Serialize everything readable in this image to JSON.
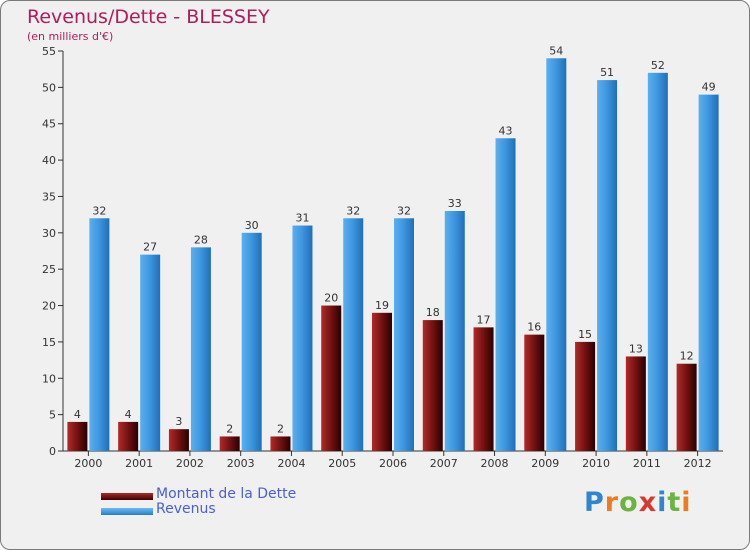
{
  "title": "Revenus/Dette - BLESSEY",
  "subtitle": "(en milliers d'€)",
  "colors": {
    "dette": "#6b0f0f",
    "revenus": "#3d95dd",
    "title": "#b01c5c",
    "legend_text": "#4a5fd6",
    "background": "#f0f0f0"
  },
  "chart_data": {
    "type": "bar",
    "categories": [
      "2000",
      "2001",
      "2002",
      "2003",
      "2004",
      "2005",
      "2006",
      "2007",
      "2008",
      "2009",
      "2010",
      "2011",
      "2012"
    ],
    "series": [
      {
        "name": "Montant de la Dette",
        "values": [
          4,
          4,
          3,
          2,
          2,
          20,
          19,
          18,
          17,
          16,
          15,
          13,
          12
        ]
      },
      {
        "name": "Revenus",
        "values": [
          32,
          27,
          28,
          30,
          31,
          32,
          32,
          33,
          43,
          54,
          51,
          52,
          49
        ]
      }
    ],
    "ylim": [
      0,
      55
    ],
    "yticks": [
      0,
      5,
      10,
      15,
      20,
      25,
      30,
      35,
      40,
      45,
      50,
      55
    ],
    "grid": false,
    "legend_position": "bottom-left"
  },
  "legend": [
    {
      "label": "Montant de la Dette"
    },
    {
      "label": "Revenus"
    }
  ],
  "logo": {
    "text": "Proxiti",
    "letter_colors": [
      "#2f86cf",
      "#ee7b1d",
      "#6cb43f",
      "#d63a2c",
      "#2f86cf",
      "#6cb43f",
      "#ee7b1d"
    ]
  }
}
